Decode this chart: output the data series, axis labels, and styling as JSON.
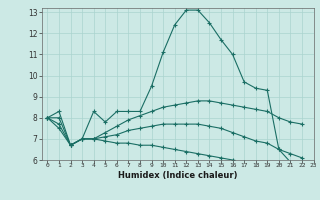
{
  "title": "",
  "xlabel": "Humidex (Indice chaleur)",
  "ylabel": "",
  "bg_color": "#cce9e5",
  "grid_color": "#aad4cf",
  "line_color": "#1a6e64",
  "xlim": [
    -0.5,
    23
  ],
  "ylim": [
    6,
    13.2
  ],
  "xtick_labels": [
    "0",
    "1",
    "2",
    "3",
    "4",
    "5",
    "6",
    "7",
    "8",
    "9",
    "10",
    "11",
    "12",
    "13",
    "14",
    "15",
    "16",
    "17",
    "18",
    "19",
    "20",
    "21",
    "22",
    "23"
  ],
  "ytick_labels": [
    "6",
    "7",
    "8",
    "9",
    "10",
    "11",
    "12",
    "13"
  ],
  "ytick_vals": [
    6,
    7,
    8,
    9,
    10,
    11,
    12,
    13
  ],
  "series": [
    [
      8.0,
      8.3,
      6.7,
      7.0,
      8.3,
      7.8,
      8.3,
      8.3,
      8.3,
      9.5,
      11.1,
      12.4,
      13.1,
      13.1,
      12.5,
      11.7,
      11.0,
      9.7,
      9.4,
      9.3,
      6.5,
      5.9,
      5.8
    ],
    [
      8.0,
      8.0,
      6.7,
      7.0,
      7.0,
      7.3,
      7.6,
      7.9,
      8.1,
      8.3,
      8.5,
      8.6,
      8.7,
      8.8,
      8.8,
      8.7,
      8.6,
      8.5,
      8.4,
      8.3,
      8.0,
      7.8,
      7.7
    ],
    [
      8.0,
      7.7,
      6.7,
      7.0,
      7.0,
      7.1,
      7.2,
      7.4,
      7.5,
      7.6,
      7.7,
      7.7,
      7.7,
      7.7,
      7.6,
      7.5,
      7.3,
      7.1,
      6.9,
      6.8,
      6.5,
      6.3,
      6.1
    ],
    [
      8.0,
      7.5,
      6.7,
      7.0,
      7.0,
      6.9,
      6.8,
      6.8,
      6.7,
      6.7,
      6.6,
      6.5,
      6.4,
      6.3,
      6.2,
      6.1,
      6.0,
      5.9,
      5.8,
      5.8,
      5.8,
      5.8,
      5.8
    ]
  ]
}
